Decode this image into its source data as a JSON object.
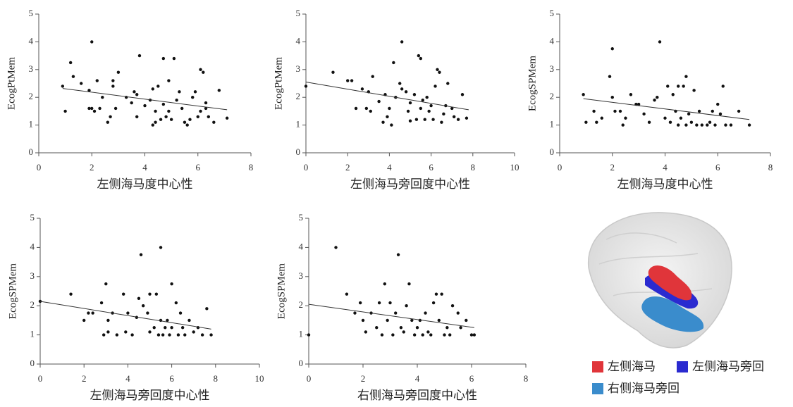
{
  "chart_data": [
    {
      "type": "scatter",
      "xlabel": "左侧海马度中心性",
      "ylabel": "EcogPtMem",
      "color": "#111111",
      "x": [
        0.9,
        1.0,
        1.2,
        1.3,
        1.6,
        1.9,
        2.0,
        1.9,
        2.0,
        2.1,
        2.2,
        2.3,
        2.4,
        2.6,
        2.7,
        2.8,
        2.8,
        2.9,
        3.0,
        3.3,
        3.5,
        3.6,
        3.7,
        3.8,
        3.7,
        4.0,
        4.2,
        4.3,
        4.3,
        4.4,
        4.4,
        4.5,
        4.6,
        4.7,
        4.7,
        4.8,
        4.9,
        4.9,
        5.0,
        5.1,
        5.2,
        5.3,
        5.4,
        5.5,
        5.6,
        5.7,
        5.8,
        5.9,
        6.0,
        6.1,
        6.1,
        6.2,
        6.3,
        6.3,
        6.4,
        6.6,
        6.8,
        7.1
      ],
      "y": [
        2.4,
        1.5,
        3.25,
        2.75,
        2.5,
        2.25,
        4.0,
        1.6,
        1.6,
        1.5,
        2.6,
        1.6,
        2.0,
        1.1,
        1.3,
        2.6,
        2.4,
        1.6,
        2.9,
        2.0,
        1.8,
        2.2,
        2.1,
        3.5,
        1.3,
        1.7,
        1.9,
        1.0,
        2.3,
        1.1,
        1.5,
        2.4,
        1.2,
        1.75,
        3.4,
        1.3,
        2.6,
        1.5,
        1.2,
        3.4,
        1.9,
        2.2,
        1.6,
        1.1,
        1.0,
        1.2,
        2.0,
        2.2,
        1.3,
        1.5,
        3.0,
        2.9,
        1.6,
        1.8,
        1.3,
        1.1,
        2.25,
        1.25
      ],
      "fit": {
        "x": [
          0.9,
          7.1
        ],
        "y": [
          2.32,
          1.55
        ]
      },
      "xlim": [
        0,
        8
      ],
      "xticks": [
        0,
        2,
        4,
        6,
        8
      ],
      "ylim": [
        0,
        5
      ],
      "yticks": [
        0,
        1,
        2,
        3,
        4,
        5
      ]
    },
    {
      "type": "scatter",
      "xlabel": "左侧海马旁回度中心性",
      "ylabel": "EcogPtMem",
      "color": "#111111",
      "x": [
        0,
        1.3,
        2.0,
        2.2,
        2.4,
        2.7,
        2.9,
        3.0,
        3.1,
        3.2,
        3.5,
        3.7,
        3.8,
        3.9,
        4.0,
        4.1,
        4.2,
        4.3,
        4.5,
        4.6,
        4.6,
        4.8,
        4.9,
        5.0,
        5.0,
        5.2,
        5.3,
        5.4,
        5.5,
        5.5,
        5.6,
        5.7,
        5.8,
        5.9,
        6.0,
        6.1,
        6.2,
        6.3,
        6.4,
        6.5,
        6.6,
        6.7,
        6.8,
        7.0,
        7.1,
        7.3,
        7.5,
        7.7
      ],
      "y": [
        2.4,
        2.9,
        2.6,
        2.6,
        1.6,
        2.3,
        1.6,
        2.2,
        1.5,
        2.75,
        1.85,
        1.1,
        2.1,
        1.3,
        1.6,
        1.0,
        3.25,
        2.0,
        2.5,
        4.0,
        2.3,
        2.2,
        1.5,
        1.15,
        1.8,
        2.1,
        1.2,
        3.5,
        3.4,
        1.6,
        1.9,
        1.2,
        2.0,
        1.5,
        1.7,
        1.2,
        2.4,
        3.0,
        2.9,
        1.1,
        1.4,
        1.7,
        2.5,
        1.6,
        1.3,
        1.2,
        2.1,
        1.25
      ],
      "fit": {
        "x": [
          0,
          7.8
        ],
        "y": [
          2.55,
          1.55
        ]
      },
      "xlim": [
        0,
        10
      ],
      "xticks": [
        0,
        2,
        4,
        6,
        8,
        10
      ],
      "ylim": [
        0,
        5
      ],
      "yticks": [
        0,
        1,
        2,
        3,
        4,
        5
      ]
    },
    {
      "type": "scatter",
      "xlabel": "左侧海马度中心性",
      "ylabel": "EcogSPMem",
      "color": "#111111",
      "x": [
        0.9,
        1.0,
        1.3,
        1.4,
        1.6,
        1.9,
        2.0,
        2.0,
        2.1,
        2.3,
        2.4,
        2.5,
        2.7,
        2.9,
        3.0,
        3.2,
        3.4,
        3.6,
        3.7,
        3.8,
        4.0,
        4.1,
        4.2,
        4.3,
        4.4,
        4.5,
        4.5,
        4.6,
        4.7,
        4.8,
        4.8,
        4.9,
        5.0,
        5.1,
        5.2,
        5.3,
        5.4,
        5.6,
        5.7,
        5.8,
        5.9,
        6.0,
        6.1,
        6.2,
        6.3,
        6.5,
        6.8,
        7.2
      ],
      "y": [
        2.1,
        1.1,
        1.5,
        1.1,
        1.25,
        2.75,
        3.75,
        2.0,
        1.5,
        1.5,
        1.0,
        1.25,
        2.1,
        1.75,
        1.75,
        1.4,
        1.1,
        1.9,
        2.0,
        4.0,
        1.25,
        2.4,
        1.1,
        2.1,
        1.5,
        2.4,
        1.0,
        1.25,
        2.4,
        2.75,
        1.0,
        1.4,
        1.1,
        2.25,
        1.0,
        1.5,
        1.0,
        1.0,
        1.1,
        1.5,
        1.0,
        1.75,
        1.4,
        2.4,
        1.0,
        1.0,
        1.5,
        1.0
      ],
      "fit": {
        "x": [
          0.9,
          7.2
        ],
        "y": [
          1.95,
          1.2
        ]
      },
      "xlim": [
        0,
        8
      ],
      "xticks": [
        0,
        2,
        4,
        6,
        8
      ],
      "ylim": [
        0,
        5
      ],
      "yticks": [
        0,
        1,
        2,
        3,
        4,
        5
      ]
    },
    {
      "type": "scatter",
      "xlabel": "左侧海马旁回度中心性",
      "ylabel": "EcogSPMem",
      "color": "#111111",
      "x": [
        0,
        1.4,
        2.0,
        2.2,
        2.4,
        2.8,
        2.9,
        3.0,
        3.1,
        3.1,
        3.3,
        3.5,
        3.8,
        3.9,
        4.0,
        4.2,
        4.4,
        4.5,
        4.6,
        4.7,
        4.9,
        5.0,
        5.0,
        5.2,
        5.3,
        5.4,
        5.5,
        5.5,
        5.6,
        5.7,
        5.8,
        5.9,
        6.0,
        6.0,
        6.2,
        6.3,
        6.4,
        6.5,
        6.6,
        6.8,
        7.0,
        7.2,
        7.4,
        7.6,
        7.8
      ],
      "y": [
        2.15,
        2.4,
        1.5,
        1.75,
        1.75,
        2.1,
        1.0,
        2.75,
        1.5,
        1.1,
        1.75,
        1.0,
        2.4,
        1.1,
        1.75,
        1.0,
        1.6,
        2.25,
        3.75,
        2.0,
        1.75,
        2.4,
        1.1,
        1.25,
        2.4,
        1.0,
        4.0,
        1.5,
        1.0,
        1.25,
        1.5,
        1.0,
        2.75,
        1.25,
        2.1,
        1.0,
        1.75,
        1.25,
        1.0,
        1.5,
        1.1,
        1.25,
        1.0,
        1.9,
        1.0
      ],
      "fit": {
        "x": [
          0,
          7.8
        ],
        "y": [
          2.15,
          1.2
        ]
      },
      "xlim": [
        0,
        10
      ],
      "xticks": [
        0,
        2,
        4,
        6,
        8,
        10
      ],
      "ylim": [
        0,
        5
      ],
      "yticks": [
        0,
        1,
        2,
        3,
        4,
        5
      ]
    },
    {
      "type": "scatter",
      "xlabel": "右侧海马旁回度中心性",
      "ylabel": "EcogSPMem",
      "color": "#111111",
      "x": [
        0,
        1.0,
        1.4,
        1.7,
        1.9,
        2.0,
        2.1,
        2.3,
        2.5,
        2.6,
        2.7,
        2.8,
        2.9,
        3.0,
        3.1,
        3.2,
        3.3,
        3.4,
        3.5,
        3.6,
        3.7,
        3.8,
        3.9,
        4.0,
        4.1,
        4.2,
        4.3,
        4.4,
        4.5,
        4.6,
        4.7,
        4.8,
        4.9,
        5.0,
        5.1,
        5.2,
        5.3,
        5.5,
        5.6,
        5.8,
        6.0,
        6.1
      ],
      "y": [
        1.0,
        4.0,
        2.4,
        1.75,
        2.1,
        1.5,
        1.1,
        1.75,
        1.25,
        2.1,
        1.0,
        2.75,
        1.5,
        2.1,
        1.0,
        1.75,
        3.75,
        1.25,
        1.1,
        2.0,
        2.75,
        1.5,
        1.0,
        1.25,
        1.5,
        1.0,
        1.75,
        1.1,
        1.0,
        2.1,
        2.4,
        1.5,
        2.4,
        1.0,
        1.25,
        1.0,
        2.0,
        1.75,
        1.25,
        1.5,
        1.0,
        1.0
      ],
      "fit": {
        "x": [
          0,
          6.1
        ],
        "y": [
          2.05,
          1.25
        ]
      },
      "xlim": [
        0,
        8
      ],
      "xticks": [
        0,
        2,
        4,
        6,
        8
      ],
      "ylim": [
        0,
        5
      ],
      "yticks": [
        0,
        1,
        2,
        3,
        4,
        5
      ]
    }
  ],
  "brain_legend": [
    {
      "label": "左侧海马",
      "color": "#e0353a"
    },
    {
      "label": "左侧海马旁回",
      "color": "#2a2ad0"
    },
    {
      "label": "右侧海马旁回",
      "color": "#3a8ccc"
    }
  ]
}
